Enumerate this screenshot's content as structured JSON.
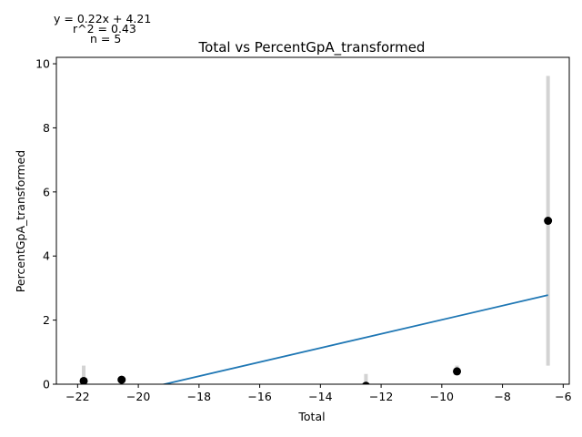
{
  "annotations": {
    "equation": "y = 0.22x + 4.21",
    "r_squared": "r^2 = 0.43",
    "n": "n = 5"
  },
  "chart_data": {
    "type": "scatter",
    "title": "Total vs PercentGpA_transformed",
    "xlabel": "Total",
    "ylabel": "PercentGpA_transformed",
    "xlim": [
      -22.7,
      -5.8
    ],
    "ylim": [
      0,
      10.2
    ],
    "x_ticks": [
      -22,
      -20,
      -18,
      -16,
      -14,
      -12,
      -10,
      -8,
      -6
    ],
    "x_tick_labels": [
      "−22",
      "−20",
      "−18",
      "−16",
      "−14",
      "−12",
      "−10",
      "−8",
      "−6"
    ],
    "y_ticks": [
      0,
      2,
      4,
      6,
      8,
      10
    ],
    "y_tick_labels": [
      "0",
      "2",
      "4",
      "6",
      "8",
      "10"
    ],
    "grid": false,
    "points": [
      {
        "x": -21.8,
        "y": 0.1,
        "err_low": 0.0,
        "err_high": 0.58
      },
      {
        "x": -20.55,
        "y": 0.14,
        "err_low": 0.0,
        "err_high": 0.14
      },
      {
        "x": -12.5,
        "y": -0.05,
        "err_low": 0.0,
        "err_high": 0.32
      },
      {
        "x": -9.5,
        "y": 0.4,
        "err_low": 0.33,
        "err_high": 0.58
      },
      {
        "x": -6.5,
        "y": 5.1,
        "err_low": 0.58,
        "err_high": 9.62
      }
    ],
    "fit_line": {
      "slope": 0.22,
      "intercept": 4.21,
      "x_range": [
        -19.6,
        -6.5
      ]
    },
    "colors": {
      "points": "#000000",
      "fit": "#1f77b4",
      "errorbars": "#d3d3d3"
    }
  }
}
